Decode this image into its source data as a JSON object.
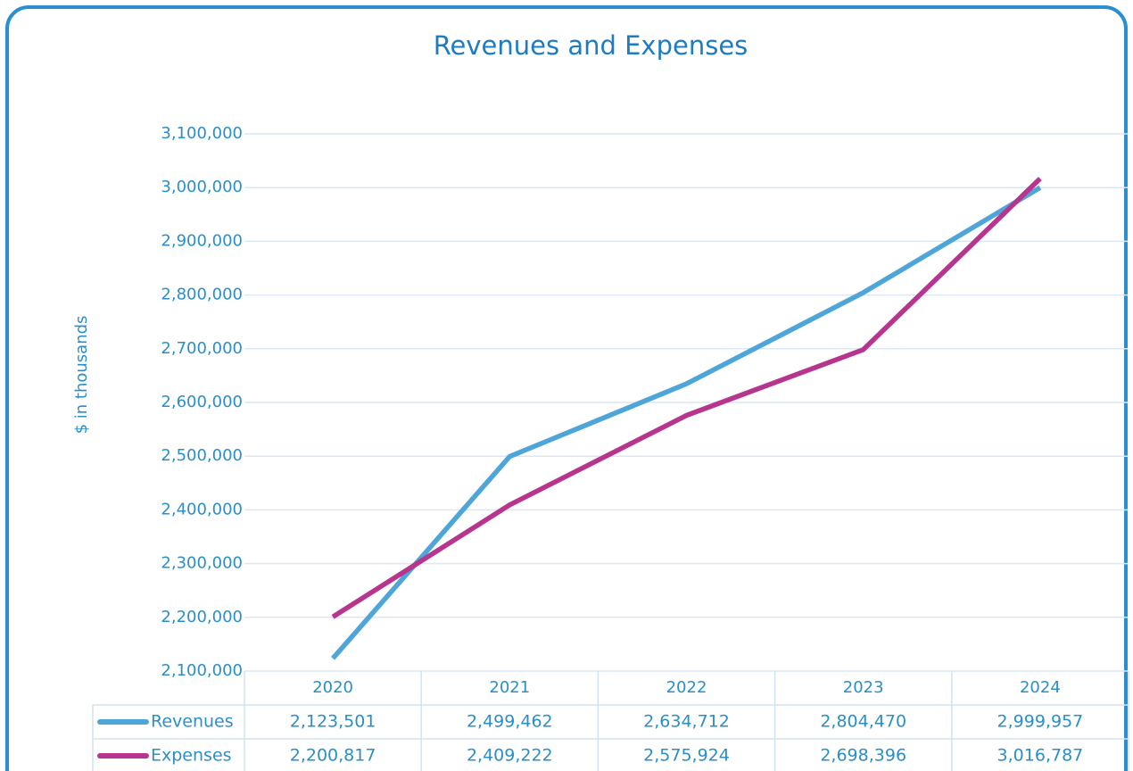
{
  "chart_data": {
    "type": "line",
    "title": "Revenues and Expenses",
    "y_label": "$ in thousands",
    "categories": [
      "2020",
      "2021",
      "2022",
      "2023",
      "2024"
    ],
    "series": [
      {
        "name": "Revenues",
        "color": "#4ea6d8",
        "values": [
          2123501,
          2499462,
          2634712,
          2804470,
          2999957
        ],
        "value_labels": [
          "2,123,501",
          "2,499,462",
          "2,634,712",
          "2,804,470",
          "2,999,957"
        ]
      },
      {
        "name": "Expenses",
        "color": "#b7358f",
        "values": [
          2200817,
          2409222,
          2575924,
          2698396,
          3016787
        ],
        "value_labels": [
          "2,200,817",
          "2,409,222",
          "2,575,924",
          "2,698,396",
          "3,016,787"
        ]
      }
    ],
    "ylim": [
      2100000,
      3100000
    ],
    "yticks": [
      {
        "value": 2100000,
        "label": "2,100,000"
      },
      {
        "value": 2200000,
        "label": "2,200,000"
      },
      {
        "value": 2300000,
        "label": "2,300,000"
      },
      {
        "value": 2400000,
        "label": "2,400,000"
      },
      {
        "value": 2500000,
        "label": "2,500,000"
      },
      {
        "value": 2600000,
        "label": "2,600,000"
      },
      {
        "value": 2700000,
        "label": "2,700,000"
      },
      {
        "value": 2800000,
        "label": "2,800,000"
      },
      {
        "value": 2900000,
        "label": "2,900,000"
      },
      {
        "value": 3000000,
        "label": "3,000,000"
      },
      {
        "value": 3100000,
        "label": "3,100,000"
      }
    ],
    "grid": true,
    "data_table": true
  }
}
